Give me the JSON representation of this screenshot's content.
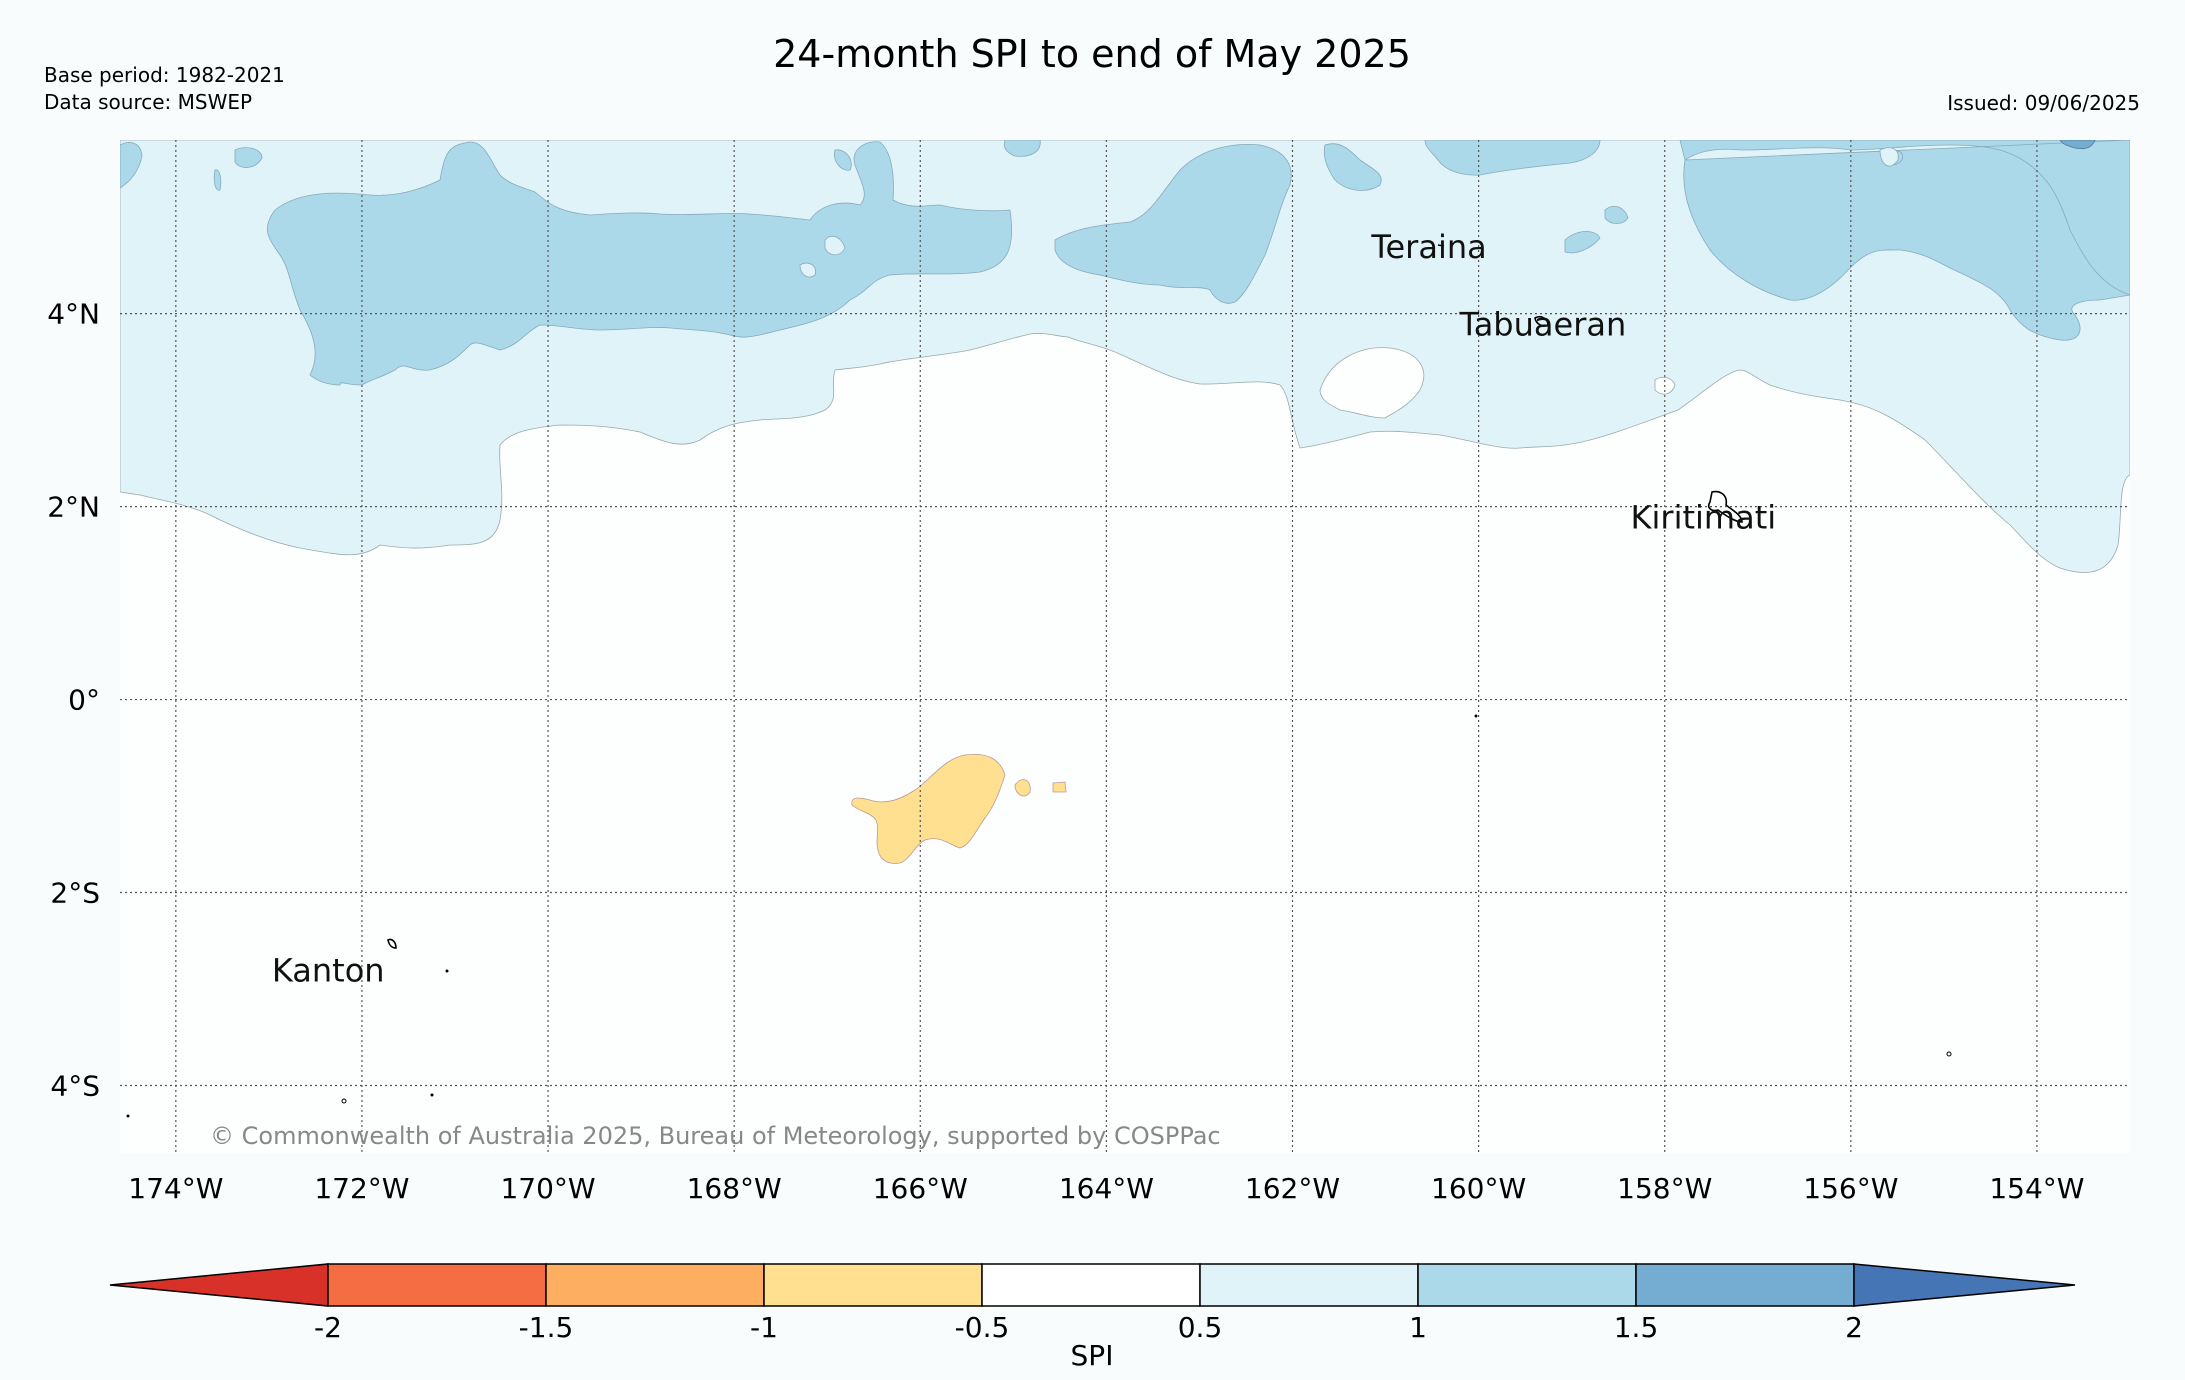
{
  "title": "24-month SPI to end of May 2025",
  "base_period": "Base period: 1982-2021",
  "data_source": "Data source: MSWEP",
  "issued": "Issued: 09/06/2025",
  "copyright": "© Commonwealth of Australia 2025, Bureau of Meteorology, supported by COSPPac",
  "map": {
    "lon_range": [
      -174.6,
      -153.0
    ],
    "lat_range": [
      -4.7,
      5.8
    ],
    "lon_ticks": [
      "174°W",
      "172°W",
      "170°W",
      "168°W",
      "166°W",
      "164°W",
      "162°W",
      "160°W",
      "158°W",
      "156°W",
      "154°W"
    ],
    "lat_ticks": [
      "4°N",
      "2°N",
      "0°",
      "2°S",
      "4°S"
    ],
    "grid": true
  },
  "places": [
    {
      "name": "Teraina",
      "lon": -160.4,
      "lat": 4.7
    },
    {
      "name": "Tabuaeran",
      "lon": -159.4,
      "lat": 3.9
    },
    {
      "name": "Kiritimati",
      "lon": -157.4,
      "lat": 1.9
    },
    {
      "name": "Kanton",
      "lon": -171.7,
      "lat": -2.8
    }
  ],
  "colorbar": {
    "label": "SPI",
    "ticks": [
      "-2",
      "-1.5",
      "-1",
      "-0.5",
      "0.5",
      "1",
      "1.5",
      "2"
    ],
    "colors": [
      "#d7312a",
      "#f46d43",
      "#fdae61",
      "#fee090",
      "#ffffff",
      "#e0f3f8",
      "#abd9e9",
      "#74add1",
      "#4575b4"
    ]
  }
}
